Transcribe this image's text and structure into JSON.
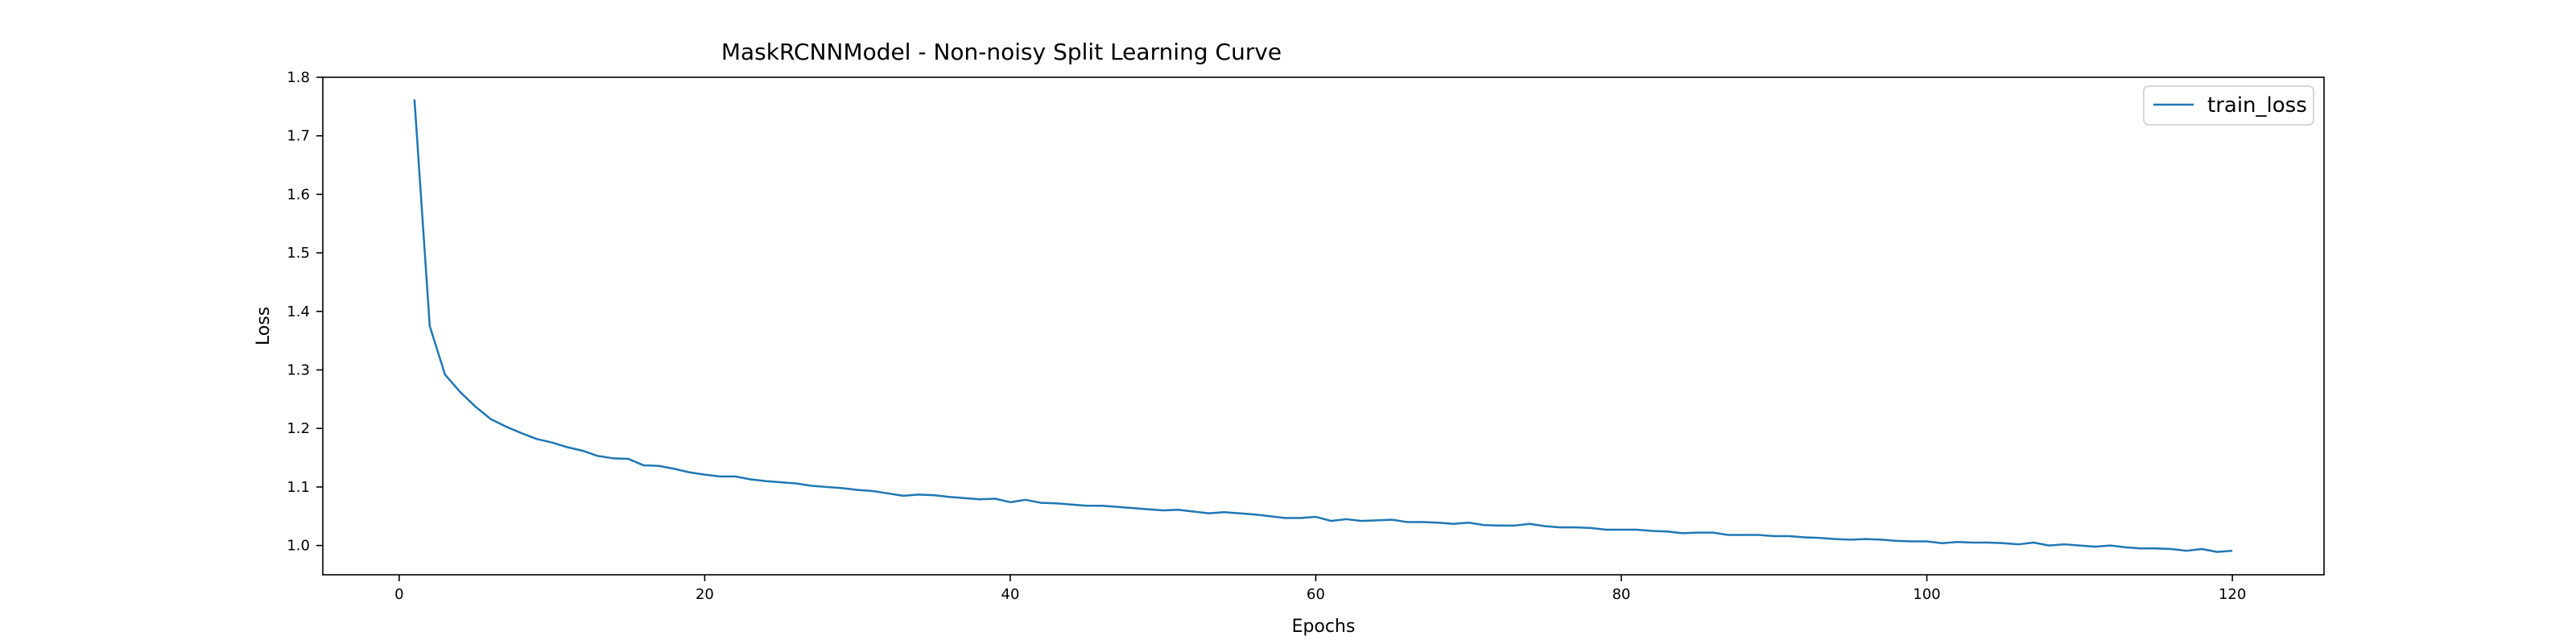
{
  "chart_data": {
    "type": "line",
    "title": "MaskRCNNModel - Non-noisy Split Learning Curve",
    "xlabel": "Epochs",
    "ylabel": "Loss",
    "xlim": [
      -5,
      126
    ],
    "ylim": [
      0.95,
      1.8
    ],
    "xticks": [
      0,
      20,
      40,
      60,
      80,
      100,
      120
    ],
    "yticks": [
      "1.0",
      "1.1",
      "1.2",
      "1.3",
      "1.4",
      "1.5",
      "1.6",
      "1.7",
      "1.8"
    ],
    "grid": false,
    "legend_position": "top-right",
    "series": [
      {
        "name": "train_loss",
        "color": "#1f77b4",
        "x": [
          1,
          2,
          3,
          4,
          5,
          6,
          7,
          8,
          9,
          10,
          11,
          12,
          13,
          14,
          15,
          16,
          17,
          18,
          19,
          20,
          21,
          22,
          23,
          24,
          25,
          26,
          27,
          28,
          29,
          30,
          31,
          32,
          33,
          34,
          35,
          36,
          37,
          38,
          39,
          40,
          41,
          42,
          43,
          44,
          45,
          46,
          47,
          48,
          49,
          50,
          51,
          52,
          53,
          54,
          55,
          56,
          57,
          58,
          59,
          60,
          61,
          62,
          63,
          64,
          65,
          66,
          67,
          68,
          69,
          70,
          71,
          72,
          73,
          74,
          75,
          76,
          77,
          78,
          79,
          80,
          81,
          82,
          83,
          84,
          85,
          86,
          87,
          88,
          89,
          90,
          91,
          92,
          93,
          94,
          95,
          96,
          97,
          98,
          99,
          100,
          101,
          102,
          103,
          104,
          105,
          106,
          107,
          108,
          109,
          110,
          111,
          112,
          113,
          114,
          115,
          116,
          117,
          118,
          119,
          120
        ],
        "y": [
          1.762,
          1.375,
          1.292,
          1.262,
          1.237,
          1.216,
          1.203,
          1.192,
          1.182,
          1.176,
          1.168,
          1.162,
          1.153,
          1.149,
          1.148,
          1.137,
          1.136,
          1.131,
          1.125,
          1.121,
          1.118,
          1.118,
          1.113,
          1.11,
          1.108,
          1.106,
          1.102,
          1.1,
          1.098,
          1.095,
          1.093,
          1.089,
          1.085,
          1.087,
          1.086,
          1.083,
          1.081,
          1.079,
          1.08,
          1.074,
          1.078,
          1.073,
          1.072,
          1.07,
          1.068,
          1.068,
          1.066,
          1.064,
          1.062,
          1.06,
          1.061,
          1.058,
          1.055,
          1.057,
          1.055,
          1.053,
          1.05,
          1.047,
          1.047,
          1.049,
          1.042,
          1.045,
          1.042,
          1.043,
          1.044,
          1.04,
          1.04,
          1.039,
          1.037,
          1.039,
          1.035,
          1.034,
          1.034,
          1.037,
          1.033,
          1.031,
          1.031,
          1.03,
          1.027,
          1.027,
          1.027,
          1.025,
          1.024,
          1.021,
          1.022,
          1.022,
          1.018,
          1.018,
          1.018,
          1.016,
          1.016,
          1.014,
          1.013,
          1.011,
          1.01,
          1.011,
          1.01,
          1.008,
          1.007,
          1.007,
          1.004,
          1.006,
          1.005,
          1.005,
          1.004,
          1.002,
          1.005,
          1.0,
          1.002,
          1.0,
          0.998,
          1.0,
          0.997,
          0.995,
          0.995,
          0.994,
          0.991,
          0.994,
          0.989,
          0.991
        ]
      }
    ]
  }
}
